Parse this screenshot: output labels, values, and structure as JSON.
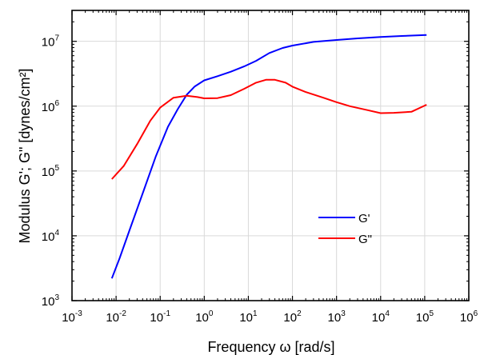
{
  "chart_data": {
    "type": "line",
    "title": "",
    "xlabel": "Frequency ω [rad/s]",
    "ylabel": "Modulus G'; G\" [dynes/cm²]",
    "xscale": "log",
    "yscale": "log",
    "xlim": [
      0.001,
      1000000
    ],
    "ylim": [
      1000,
      30000000
    ],
    "grid": true,
    "x_tick_labels": [
      {
        "value": 0.001,
        "base": "10",
        "exp": "-3"
      },
      {
        "value": 0.01,
        "base": "10",
        "exp": "-2"
      },
      {
        "value": 0.1,
        "base": "10",
        "exp": "-1"
      },
      {
        "value": 1,
        "base": "10",
        "exp": "0"
      },
      {
        "value": 10,
        "base": "10",
        "exp": "1"
      },
      {
        "value": 100,
        "base": "10",
        "exp": "2"
      },
      {
        "value": 1000,
        "base": "10",
        "exp": "3"
      },
      {
        "value": 10000,
        "base": "10",
        "exp": "4"
      },
      {
        "value": 100000,
        "base": "10",
        "exp": "5"
      },
      {
        "value": 1000000,
        "base": "10",
        "exp": "6"
      }
    ],
    "y_tick_labels": [
      {
        "value": 1000,
        "base": "10",
        "exp": "3"
      },
      {
        "value": 10000,
        "base": "10",
        "exp": "4"
      },
      {
        "value": 100000,
        "base": "10",
        "exp": "5"
      },
      {
        "value": 1000000,
        "base": "10",
        "exp": "6"
      },
      {
        "value": 10000000,
        "base": "10",
        "exp": "7"
      }
    ],
    "legend": {
      "placement": "lower-right-inside"
    },
    "series": [
      {
        "name": "G'",
        "color": "#0000ff",
        "x": [
          0.008,
          0.012,
          0.02,
          0.04,
          0.08,
          0.15,
          0.25,
          0.4,
          0.6,
          1,
          2,
          4,
          8,
          15,
          30,
          60,
          100,
          300,
          1000,
          3000,
          10000,
          30000,
          110000
        ],
        "y": [
          2200,
          4500,
          12000,
          45000,
          170000,
          480000,
          900000,
          1500000,
          2000000,
          2500000,
          2900000,
          3400000,
          4100000,
          5000000,
          6600000,
          7900000,
          8600000,
          9800000,
          10500000,
          11100000,
          11700000,
          12100000,
          12500000
        ]
      },
      {
        "name": "G\"",
        "color": "#ff0000",
        "x": [
          0.008,
          0.015,
          0.03,
          0.06,
          0.1,
          0.2,
          0.4,
          0.7,
          1,
          2,
          4,
          8,
          15,
          25,
          40,
          70,
          100,
          200,
          500,
          1000,
          2000,
          5000,
          10000,
          20000,
          50000,
          110000
        ],
        "y": [
          75000,
          120000,
          260000,
          600000,
          950000,
          1350000,
          1450000,
          1380000,
          1320000,
          1330000,
          1480000,
          1850000,
          2300000,
          2550000,
          2550000,
          2300000,
          2000000,
          1650000,
          1350000,
          1150000,
          1000000,
          870000,
          780000,
          790000,
          820000,
          1050000
        ]
      }
    ]
  }
}
